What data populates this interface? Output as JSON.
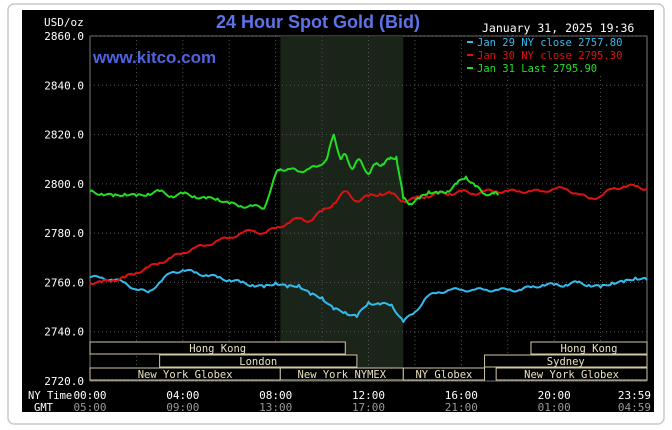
{
  "chart_data": {
    "type": "line",
    "title": "24 Hour Spot Gold (Bid)",
    "brand": "www.kitco.com",
    "timestamp": "January 31, 2025 19:36",
    "ylabel": "USD/oz",
    "ylim": [
      2720,
      2860
    ],
    "yticks": [
      "2860.0",
      "2840.0",
      "2820.0",
      "2800.0",
      "2780.0",
      "2760.0",
      "2740.0",
      "2720.0"
    ],
    "xlim": [
      0,
      24
    ],
    "xtick_hours": [
      0,
      4,
      8,
      12,
      16,
      20,
      23.983
    ],
    "xticks_ny": [
      "00:00",
      "04:00",
      "08:00",
      "12:00",
      "16:00",
      "20:00",
      "23:59"
    ],
    "xticks_gmt": [
      "05:00",
      "09:00",
      "13:00",
      "17:00",
      "21:00",
      "01:00",
      "04:59"
    ],
    "x_row_labels": {
      "ny": "NY Time",
      "gmt": "GMT"
    },
    "grid": true,
    "legend_position": "top-right",
    "shaded_region_hours": [
      8.2,
      13.5
    ],
    "sessions": [
      {
        "label": "Hong Kong",
        "start": 0,
        "end": 11
      },
      {
        "label": "London",
        "start": 3,
        "end": 11.5
      },
      {
        "label": "New York Globex",
        "start": 0,
        "end": 8.2
      },
      {
        "label": "New York NYMEX",
        "start": 8.2,
        "end": 13.5
      },
      {
        "label": "NY Globex",
        "start": 13.5,
        "end": 17
      },
      {
        "label": "Hong Kong",
        "start": 19,
        "end": 24
      },
      {
        "label": "Sydney",
        "start": 17,
        "end": 24
      },
      {
        "label": "New York Globex",
        "start": 17.5,
        "end": 24
      }
    ],
    "series": [
      {
        "name": "Jan 29 NY close 2757.80",
        "color": "#33bbee",
        "x": [
          0,
          0.5,
          1,
          1.5,
          2,
          2.5,
          3,
          3.5,
          4,
          4.5,
          5,
          5.5,
          6,
          6.5,
          7,
          7.5,
          8,
          8.5,
          9,
          9.5,
          10,
          10.5,
          11,
          11.5,
          12,
          12.5,
          13,
          13.5,
          14,
          14.5,
          15,
          15.5,
          16,
          16.5,
          17,
          17.5,
          18,
          18.5,
          19,
          19.5,
          20,
          20.5,
          21,
          21.5,
          22,
          22.5,
          23,
          23.5,
          24
        ],
        "y": [
          2762,
          2762,
          2761,
          2760,
          2757,
          2756,
          2760,
          2764,
          2765,
          2764,
          2763,
          2762,
          2761,
          2760,
          2759,
          2758,
          2760,
          2758,
          2759,
          2755,
          2754,
          2749,
          2748,
          2746,
          2752,
          2751,
          2751,
          2744,
          2748,
          2754,
          2756,
          2757,
          2757,
          2757,
          2757,
          2757,
          2757,
          2757,
          2758,
          2759,
          2759,
          2759,
          2760,
          2759,
          2758,
          2760,
          2760,
          2762,
          2761
        ]
      },
      {
        "name": "Jan 30 NY close 2795.30",
        "color": "#dd1111",
        "x": [
          0,
          0.5,
          1,
          1.5,
          2,
          2.5,
          3,
          3.5,
          4,
          4.5,
          5,
          5.5,
          6,
          6.5,
          7,
          7.5,
          8,
          8.5,
          9,
          9.5,
          10,
          10.5,
          11,
          11.5,
          12,
          12.5,
          13,
          13.5,
          14,
          14.5,
          15,
          15.5,
          16,
          16.5,
          17,
          17.5,
          18,
          18.5,
          19,
          19.5,
          20,
          20.5,
          21,
          21.5,
          22,
          22.5,
          23,
          23.5,
          24
        ],
        "y": [
          2760,
          2760,
          2761,
          2762,
          2764,
          2766,
          2768,
          2770,
          2772,
          2774,
          2775,
          2777,
          2778,
          2780,
          2781,
          2780,
          2782,
          2784,
          2786,
          2785,
          2789,
          2792,
          2797,
          2793,
          2795,
          2796,
          2796,
          2793,
          2794,
          2795,
          2796,
          2796,
          2797,
          2796,
          2797,
          2797,
          2797,
          2797,
          2797,
          2797,
          2798,
          2798,
          2796,
          2794,
          2795,
          2798,
          2799,
          2799,
          2798
        ]
      },
      {
        "name": "Jan 31 Last 2795.90",
        "color": "#22dd22",
        "x": [
          0,
          0.5,
          1,
          1.5,
          2,
          2.5,
          3,
          3.5,
          4,
          4.5,
          5,
          5.5,
          6,
          6.5,
          7,
          7.5,
          8,
          8.2,
          8.6,
          9,
          9.4,
          9.8,
          10.2,
          10.5,
          10.8,
          11,
          11.3,
          11.6,
          12,
          12.3,
          12.6,
          12.9,
          13.2,
          13.5,
          13.8,
          14.2,
          14.6,
          15,
          15.4,
          15.8,
          16.2,
          16.6,
          17,
          17.4,
          17.6
        ],
        "y": [
          2797,
          2796,
          2795,
          2796,
          2795,
          2796,
          2797,
          2795,
          2796,
          2795,
          2794,
          2794,
          2792,
          2791,
          2791,
          2790,
          2804,
          2806,
          2806,
          2805,
          2806,
          2807,
          2810,
          2820,
          2810,
          2812,
          2806,
          2810,
          2804,
          2808,
          2808,
          2810,
          2811,
          2794,
          2792,
          2794,
          2797,
          2796,
          2797,
          2800,
          2803,
          2799,
          2796,
          2796,
          2796
        ]
      }
    ]
  }
}
